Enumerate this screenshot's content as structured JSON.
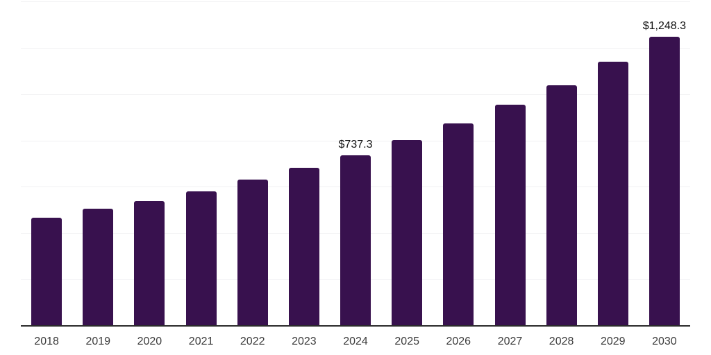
{
  "chart_data": {
    "type": "bar",
    "title": "",
    "xlabel": "",
    "ylabel": "",
    "categories": [
      "2018",
      "2019",
      "2020",
      "2021",
      "2022",
      "2023",
      "2024",
      "2025",
      "2026",
      "2027",
      "2028",
      "2029",
      "2030"
    ],
    "values": [
      468,
      505,
      538,
      580,
      630,
      683,
      737.3,
      801,
      875,
      953,
      1037,
      1141,
      1248.3
    ],
    "data_labels": [
      {
        "category": "2024",
        "text": "$737.3"
      },
      {
        "category": "2030",
        "text": "$1,248.3"
      }
    ],
    "ylim": [
      0,
      1400
    ],
    "grid_step": 200,
    "grid": "horizontal",
    "y_axis_tick_labels_visible": false,
    "legend_position": "none"
  },
  "colors": {
    "bar": "#38114E",
    "gridline": "#F1F1F3",
    "axis_line": "#2B2B2B",
    "tick_label": "#3C3C3C",
    "data_label": "#101010",
    "background": "#FFFFFF"
  }
}
